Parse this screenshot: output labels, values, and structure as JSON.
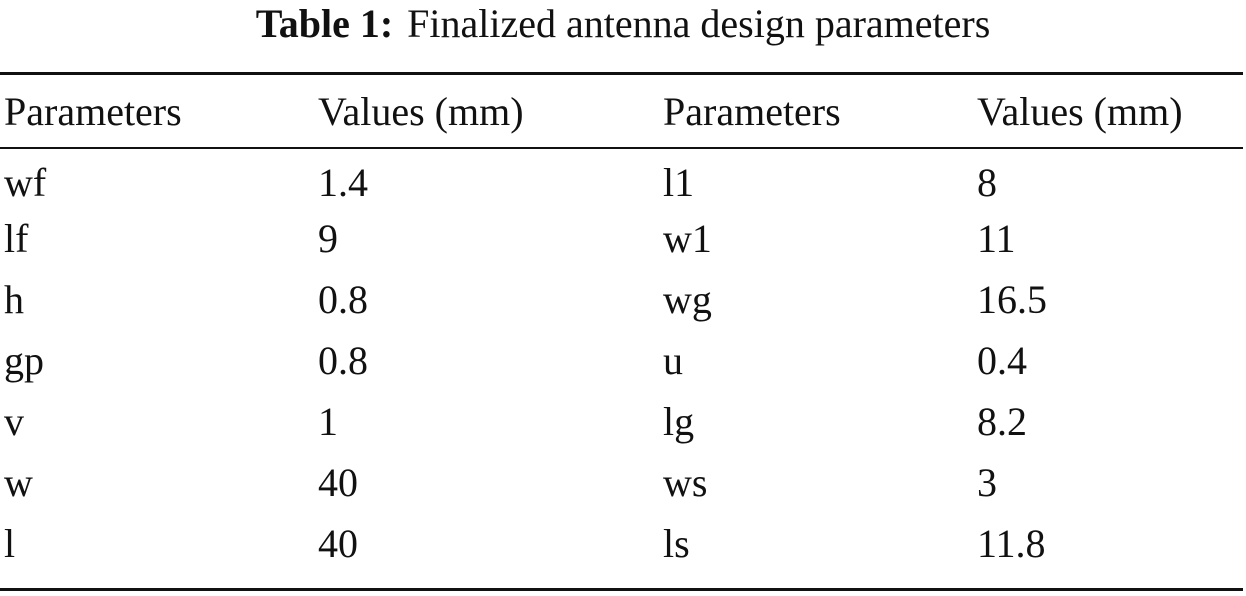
{
  "caption": {
    "label": "Table 1:",
    "text": "Finalized antenna design parameters"
  },
  "table": {
    "headers": [
      "Parameters",
      "Values (mm)",
      "Parameters",
      "Values (mm)"
    ],
    "rows": [
      [
        "wf",
        "1.4",
        "l1",
        "8"
      ],
      [
        "lf",
        "9",
        "w1",
        "11"
      ],
      [
        "h",
        "0.8",
        "wg",
        "16.5"
      ],
      [
        "gp",
        "0.8",
        "u",
        "0.4"
      ],
      [
        "v",
        "1",
        "lg",
        "8.2"
      ],
      [
        "w",
        "40",
        "ws",
        "3"
      ],
      [
        "l",
        "40",
        "ls",
        "11.8"
      ]
    ]
  }
}
